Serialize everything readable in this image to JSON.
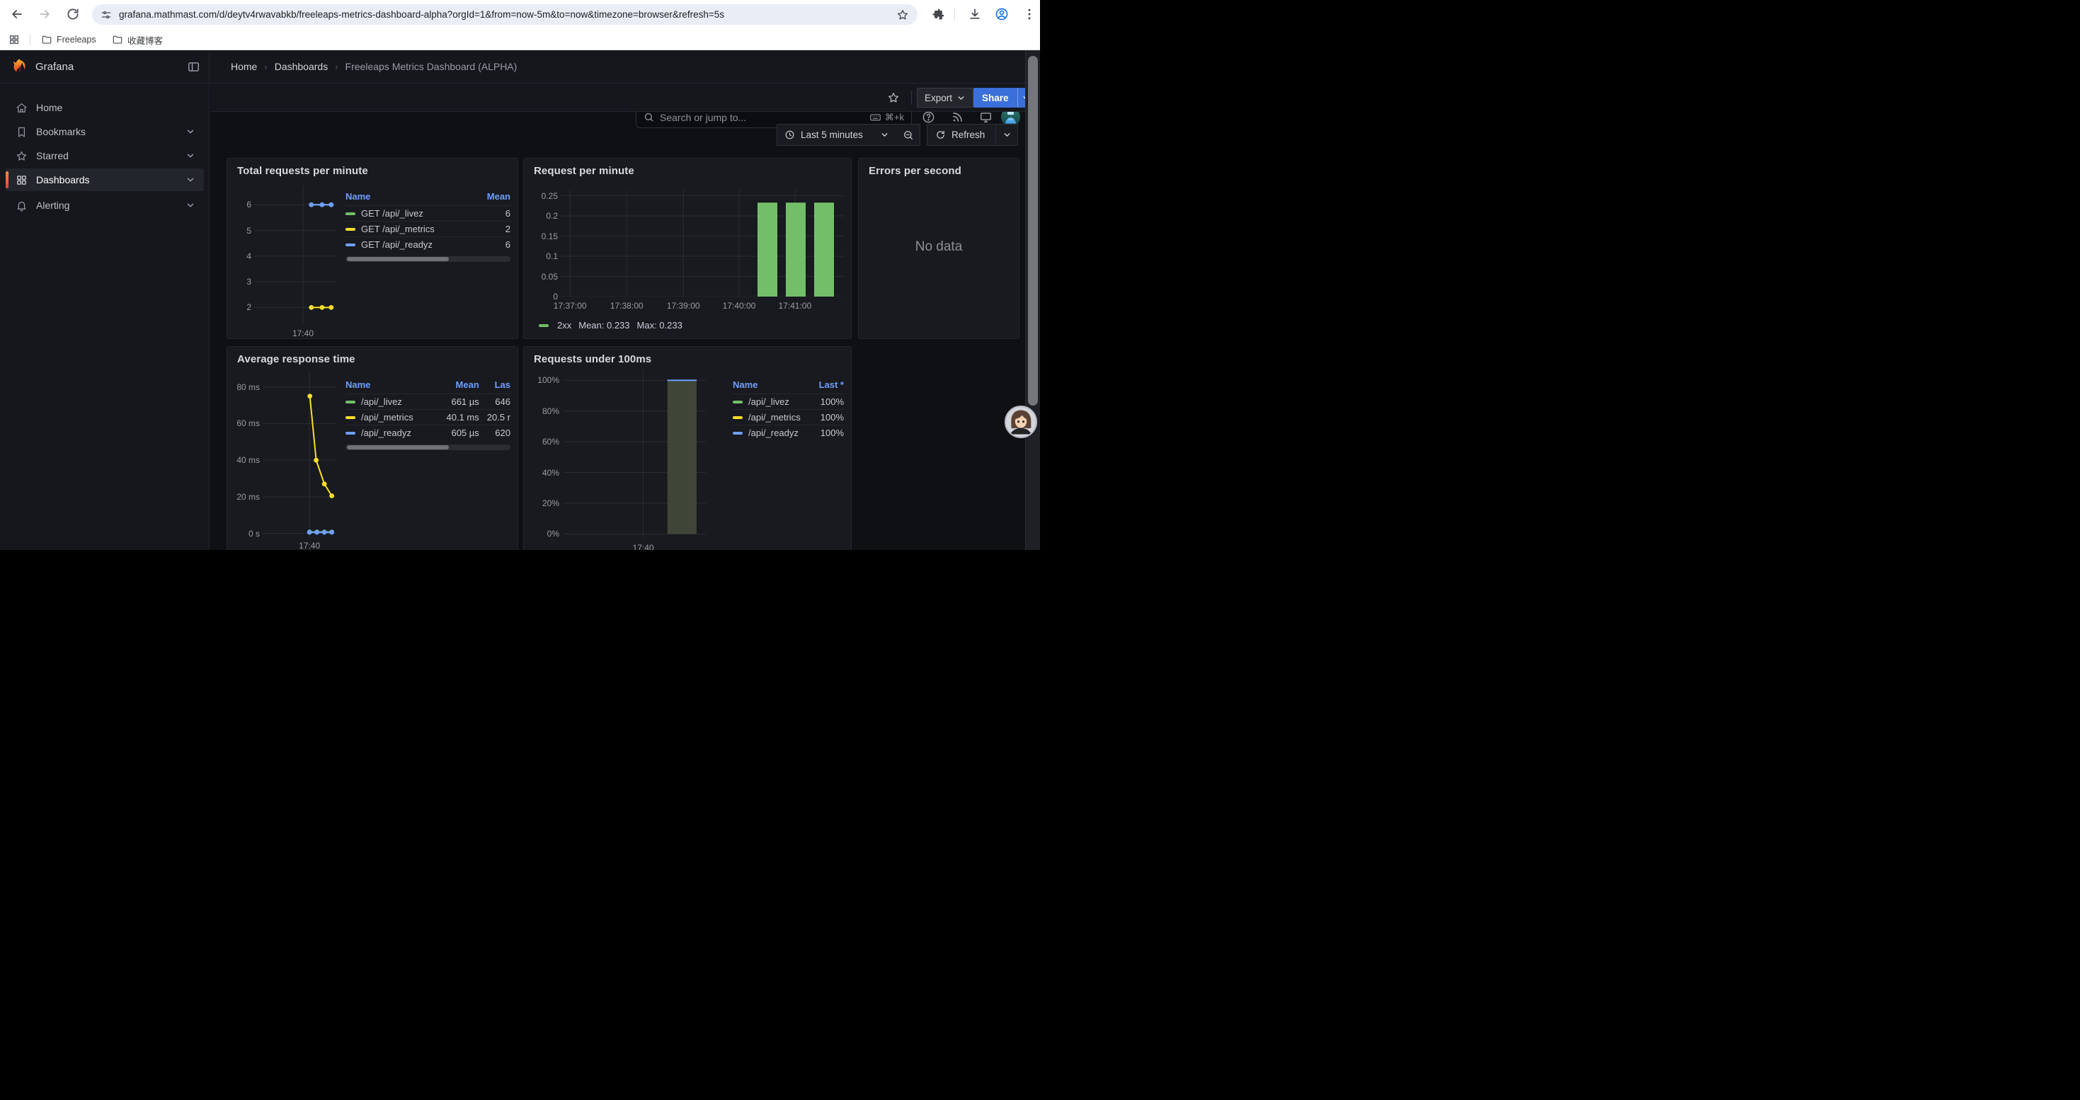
{
  "browser": {
    "url": "grafana.mathmast.com/d/deytv4rwavabkb/freeleaps-metrics-dashboard-alpha?orgId=1&from=now-5m&to=now&timezone=browser&refresh=5s",
    "bookmarks": [
      {
        "label": "Freeleaps"
      },
      {
        "label": "收藏博客"
      }
    ]
  },
  "nav": {
    "brand": "Grafana",
    "breadcrumb": {
      "home": "Home",
      "section": "Dashboards",
      "current": "Freeleaps Metrics Dashboard (ALPHA)"
    },
    "search": {
      "placeholder": "Search or jump to...",
      "shortcut": "⌘+k"
    }
  },
  "sidebar": {
    "items": [
      {
        "label": "Home",
        "selected": false
      },
      {
        "label": "Bookmarks",
        "selected": false
      },
      {
        "label": "Starred",
        "selected": false
      },
      {
        "label": "Dashboards",
        "selected": true
      },
      {
        "label": "Alerting",
        "selected": false
      }
    ]
  },
  "toolbar": {
    "export": "Export",
    "share": "Share"
  },
  "timebar": {
    "range": "Last 5 minutes",
    "refresh": "Refresh"
  },
  "colors": {
    "green": "#73bf69",
    "yellow": "#fade2a",
    "blue": "#6e9fff",
    "accent_blue": "#3b6fd9"
  },
  "chart_data": [
    {
      "id": "total-requests",
      "type": "line",
      "title": "Total requests per minute",
      "ylim": [
        1.35,
        6.75
      ],
      "grid": true,
      "y_ticks": [
        {
          "label": "6",
          "v": 6
        },
        {
          "label": "5",
          "v": 5
        },
        {
          "label": "4",
          "v": 4
        },
        {
          "label": "3",
          "v": 3
        },
        {
          "label": "2",
          "v": 2
        }
      ],
      "x_ticks": [
        {
          "label": "17:40",
          "f": 0.59
        }
      ],
      "series": [
        {
          "name": "GET /api/_metrics",
          "color": "#fade2a",
          "mean": 2,
          "points": [
            {
              "f": 0.69,
              "v": 2
            },
            {
              "f": 0.82,
              "v": 2
            },
            {
              "f": 0.93,
              "v": 2
            }
          ]
        },
        {
          "name": "GET /api/_livez",
          "color": "#73bf69",
          "mean": 6,
          "points": [
            {
              "f": 0.69,
              "v": 6
            },
            {
              "f": 0.82,
              "v": 6
            },
            {
              "f": 0.93,
              "v": 6
            }
          ]
        },
        {
          "name": "GET /api/_readyz",
          "color": "#6e9fff",
          "mean": 6,
          "points": [
            {
              "f": 0.69,
              "v": 6
            },
            {
              "f": 0.82,
              "v": 6
            },
            {
              "f": 0.93,
              "v": 6
            }
          ]
        }
      ],
      "legend": {
        "columns": [
          "Name",
          "Mean"
        ],
        "rows": [
          {
            "color": "#73bf69",
            "cells": [
              "GET /api/_livez",
              "6"
            ]
          },
          {
            "color": "#fade2a",
            "cells": [
              "GET /api/_metrics",
              "2"
            ]
          },
          {
            "color": "#6e9fff",
            "cells": [
              "GET /api/_readyz",
              "6"
            ]
          }
        ],
        "scrollbar": true
      }
    },
    {
      "id": "request-per-minute",
      "type": "bar",
      "title": "Request per minute",
      "ylim": [
        0,
        0.265
      ],
      "grid": true,
      "y_ticks": [
        {
          "label": "0.25",
          "v": 0.25
        },
        {
          "label": "0.2",
          "v": 0.2
        },
        {
          "label": "0.15",
          "v": 0.15
        },
        {
          "label": "0.1",
          "v": 0.1
        },
        {
          "label": "0.05",
          "v": 0.05
        },
        {
          "label": "0",
          "v": 0
        }
      ],
      "x_ticks": [
        {
          "label": "17:37:00",
          "f": 0.033
        },
        {
          "label": "17:38:00",
          "f": 0.233
        },
        {
          "label": "17:39:00",
          "f": 0.433
        },
        {
          "label": "17:40:00",
          "f": 0.63
        },
        {
          "label": "17:41:00",
          "f": 0.827
        }
      ],
      "bar_color": "#73bf69",
      "bar_width_f": 0.07,
      "bars": [
        {
          "f": 0.695,
          "v": 0.233
        },
        {
          "f": 0.795,
          "v": 0.233
        },
        {
          "f": 0.895,
          "v": 0.233
        }
      ],
      "legend_inline": {
        "color": "#73bf69",
        "series": "2xx",
        "stats": [
          "Mean: 0.233",
          "Max: 0.233"
        ]
      }
    },
    {
      "id": "errors-per-second",
      "type": "none",
      "title": "Errors per second",
      "no_data_text": "No data"
    },
    {
      "id": "avg-response-time",
      "type": "line",
      "title": "Average response time",
      "ylim": [
        -2.5,
        88
      ],
      "grid": true,
      "y_ticks": [
        {
          "label": "80 ms",
          "v": 80
        },
        {
          "label": "60 ms",
          "v": 60
        },
        {
          "label": "40 ms",
          "v": 40
        },
        {
          "label": "20 ms",
          "v": 20
        },
        {
          "label": "0 s",
          "v": 0
        }
      ],
      "x_ticks": [
        {
          "label": "17:40",
          "f": 0.63
        }
      ],
      "series": [
        {
          "name": "/api/_livez",
          "color": "#73bf69",
          "mean_label": "661 µs",
          "points": [
            {
              "f": 0.63,
              "v": 0.8
            },
            {
              "f": 0.73,
              "v": 0.8
            },
            {
              "f": 0.83,
              "v": 0.8
            },
            {
              "f": 0.93,
              "v": 0.8
            }
          ]
        },
        {
          "name": "/api/_readyz",
          "color": "#6e9fff",
          "mean_label": "605 µs",
          "points": [
            {
              "f": 0.63,
              "v": 0.6
            },
            {
              "f": 0.73,
              "v": 0.6
            },
            {
              "f": 0.83,
              "v": 0.6
            },
            {
              "f": 0.93,
              "v": 0.6
            }
          ]
        },
        {
          "name": "/api/_metrics",
          "color": "#fade2a",
          "mean_label": "40.1 ms",
          "points": [
            {
              "f": 0.635,
              "v": 75
            },
            {
              "f": 0.72,
              "v": 40
            },
            {
              "f": 0.83,
              "v": 27
            },
            {
              "f": 0.93,
              "v": 20.5
            }
          ]
        }
      ],
      "legend": {
        "columns": [
          "Name",
          "Mean",
          "Las"
        ],
        "rows": [
          {
            "color": "#73bf69",
            "cells": [
              "/api/_livez",
              "661 µs",
              "646"
            ]
          },
          {
            "color": "#fade2a",
            "cells": [
              "/api/_metrics",
              "40.1 ms",
              "20.5 r"
            ]
          },
          {
            "color": "#6e9fff",
            "cells": [
              "/api/_readyz",
              "605 µs",
              "620"
            ]
          }
        ],
        "scrollbar": true
      }
    },
    {
      "id": "requests-under-100ms",
      "type": "area",
      "title": "Requests under 100ms",
      "ylim": [
        -3,
        107
      ],
      "grid": true,
      "y_ticks": [
        {
          "label": "100%",
          "v": 100
        },
        {
          "label": "80%",
          "v": 80
        },
        {
          "label": "60%",
          "v": 60
        },
        {
          "label": "40%",
          "v": 40
        },
        {
          "label": "20%",
          "v": 20
        },
        {
          "label": "0%",
          "v": 0
        }
      ],
      "x_ticks": [
        {
          "label": "17:40",
          "f": 0.56
        }
      ],
      "area": {
        "x0": 0.73,
        "x1": 0.935,
        "v": 100,
        "fill": "#3f4637",
        "line_color": "#6e9fff"
      },
      "legend": {
        "columns": [
          "Name",
          "Last *"
        ],
        "rows": [
          {
            "color": "#73bf69",
            "cells": [
              "/api/_livez",
              "100%"
            ]
          },
          {
            "color": "#fade2a",
            "cells": [
              "/api/_metrics",
              "100%"
            ]
          },
          {
            "color": "#6e9fff",
            "cells": [
              "/api/_readyz",
              "100%"
            ]
          }
        ],
        "scrollbar": false
      }
    }
  ]
}
